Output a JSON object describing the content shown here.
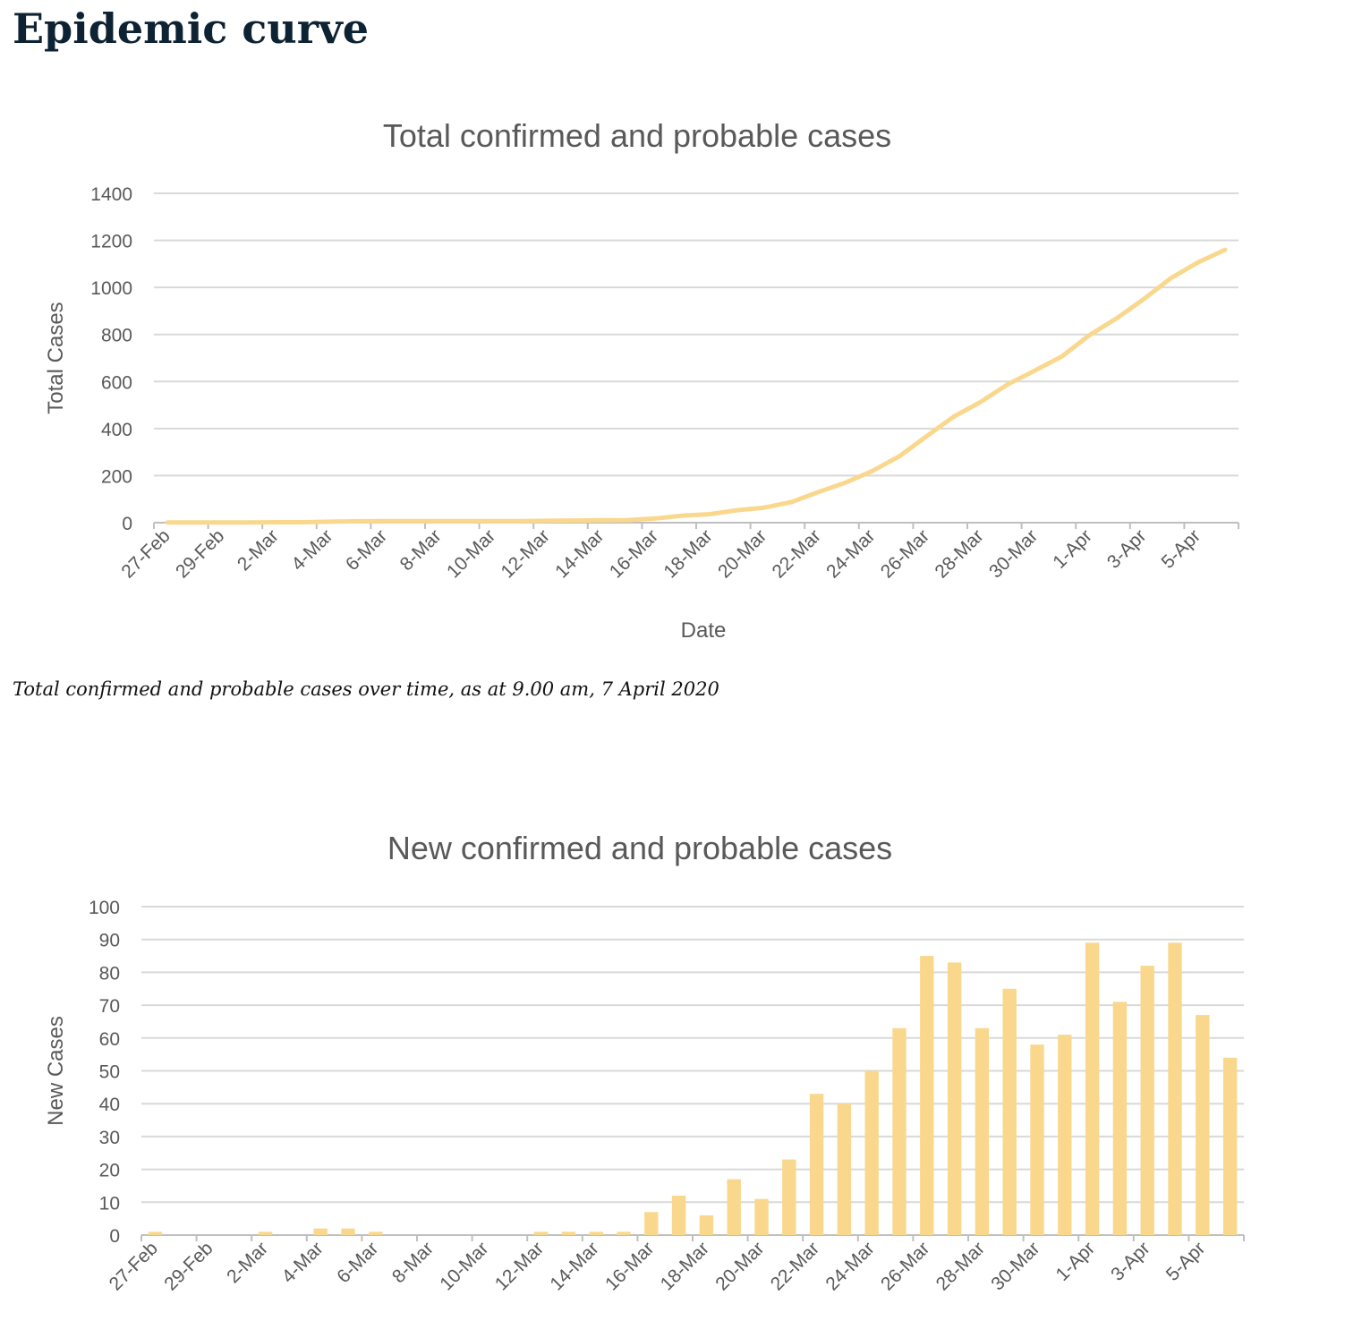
{
  "page": {
    "title": "Epidemic curve",
    "caption": "Total confirmed and probable cases over time, as at 9.00 am, 7 April 2020"
  },
  "chart_data": [
    {
      "type": "line",
      "title": "Total confirmed and probable cases",
      "xlabel": "Date",
      "ylabel": "Total Cases",
      "ylim": [
        0,
        1400
      ],
      "yticks": [
        "0",
        "200",
        "400",
        "600",
        "800",
        "1000",
        "1200",
        "1400"
      ],
      "color": "#f9d88e",
      "grid": true,
      "legend": "none",
      "x_tick_labels": [
        "27-Feb",
        "29-Feb",
        "2-Mar",
        "4-Mar",
        "6-Mar",
        "8-Mar",
        "10-Mar",
        "12-Mar",
        "14-Mar",
        "16-Mar",
        "18-Mar",
        "20-Mar",
        "22-Mar",
        "24-Mar",
        "26-Mar",
        "28-Mar",
        "30-Mar",
        "1-Apr",
        "3-Apr",
        "5-Apr"
      ],
      "x": [
        "27-Feb",
        "28-Feb",
        "29-Feb",
        "1-Mar",
        "2-Mar",
        "3-Mar",
        "4-Mar",
        "5-Mar",
        "6-Mar",
        "7-Mar",
        "8-Mar",
        "9-Mar",
        "10-Mar",
        "11-Mar",
        "12-Mar",
        "13-Mar",
        "14-Mar",
        "15-Mar",
        "16-Mar",
        "17-Mar",
        "18-Mar",
        "19-Mar",
        "20-Mar",
        "21-Mar",
        "22-Mar",
        "23-Mar",
        "24-Mar",
        "25-Mar",
        "26-Mar",
        "27-Mar",
        "28-Mar",
        "29-Mar",
        "30-Mar",
        "31-Mar",
        "1-Apr",
        "2-Apr",
        "3-Apr",
        "4-Apr",
        "5-Apr",
        "6-Apr"
      ],
      "values": [
        1,
        1,
        1,
        1,
        2,
        2,
        4,
        6,
        7,
        7,
        7,
        7,
        7,
        7,
        8,
        9,
        10,
        11,
        18,
        30,
        36,
        53,
        64,
        87,
        130,
        170,
        220,
        283,
        368,
        451,
        514,
        589,
        647,
        708,
        797,
        868,
        950,
        1039,
        1106,
        1160
      ]
    },
    {
      "type": "bar",
      "title": "New confirmed and probable cases",
      "ylabel": "New Cases",
      "ylim": [
        0,
        100
      ],
      "yticks": [
        "0",
        "10",
        "20",
        "30",
        "40",
        "50",
        "60",
        "70",
        "80",
        "90",
        "100"
      ],
      "color": "#f9d88e",
      "grid": true,
      "legend": "none",
      "x_tick_labels": [
        "27-Feb",
        "29-Feb",
        "2-Mar",
        "4-Mar",
        "6-Mar",
        "8-Mar",
        "10-Mar",
        "12-Mar",
        "14-Mar",
        "16-Mar",
        "18-Mar",
        "20-Mar",
        "22-Mar",
        "24-Mar",
        "26-Mar",
        "28-Mar",
        "30-Mar",
        "1-Apr",
        "3-Apr",
        "5-Apr"
      ],
      "categories": [
        "27-Feb",
        "28-Feb",
        "29-Feb",
        "1-Mar",
        "2-Mar",
        "3-Mar",
        "4-Mar",
        "5-Mar",
        "6-Mar",
        "7-Mar",
        "8-Mar",
        "9-Mar",
        "10-Mar",
        "11-Mar",
        "12-Mar",
        "13-Mar",
        "14-Mar",
        "15-Mar",
        "16-Mar",
        "17-Mar",
        "18-Mar",
        "19-Mar",
        "20-Mar",
        "21-Mar",
        "22-Mar",
        "23-Mar",
        "24-Mar",
        "25-Mar",
        "26-Mar",
        "27-Mar",
        "28-Mar",
        "29-Mar",
        "30-Mar",
        "31-Mar",
        "1-Apr",
        "2-Apr",
        "3-Apr",
        "4-Apr",
        "5-Apr",
        "6-Apr"
      ],
      "values": [
        1,
        0,
        0,
        0,
        1,
        0,
        2,
        2,
        1,
        0,
        0,
        0,
        0,
        0,
        1,
        1,
        1,
        1,
        7,
        12,
        6,
        17,
        11,
        23,
        43,
        40,
        50,
        63,
        85,
        83,
        63,
        75,
        58,
        61,
        89,
        71,
        82,
        89,
        67,
        54
      ]
    }
  ]
}
